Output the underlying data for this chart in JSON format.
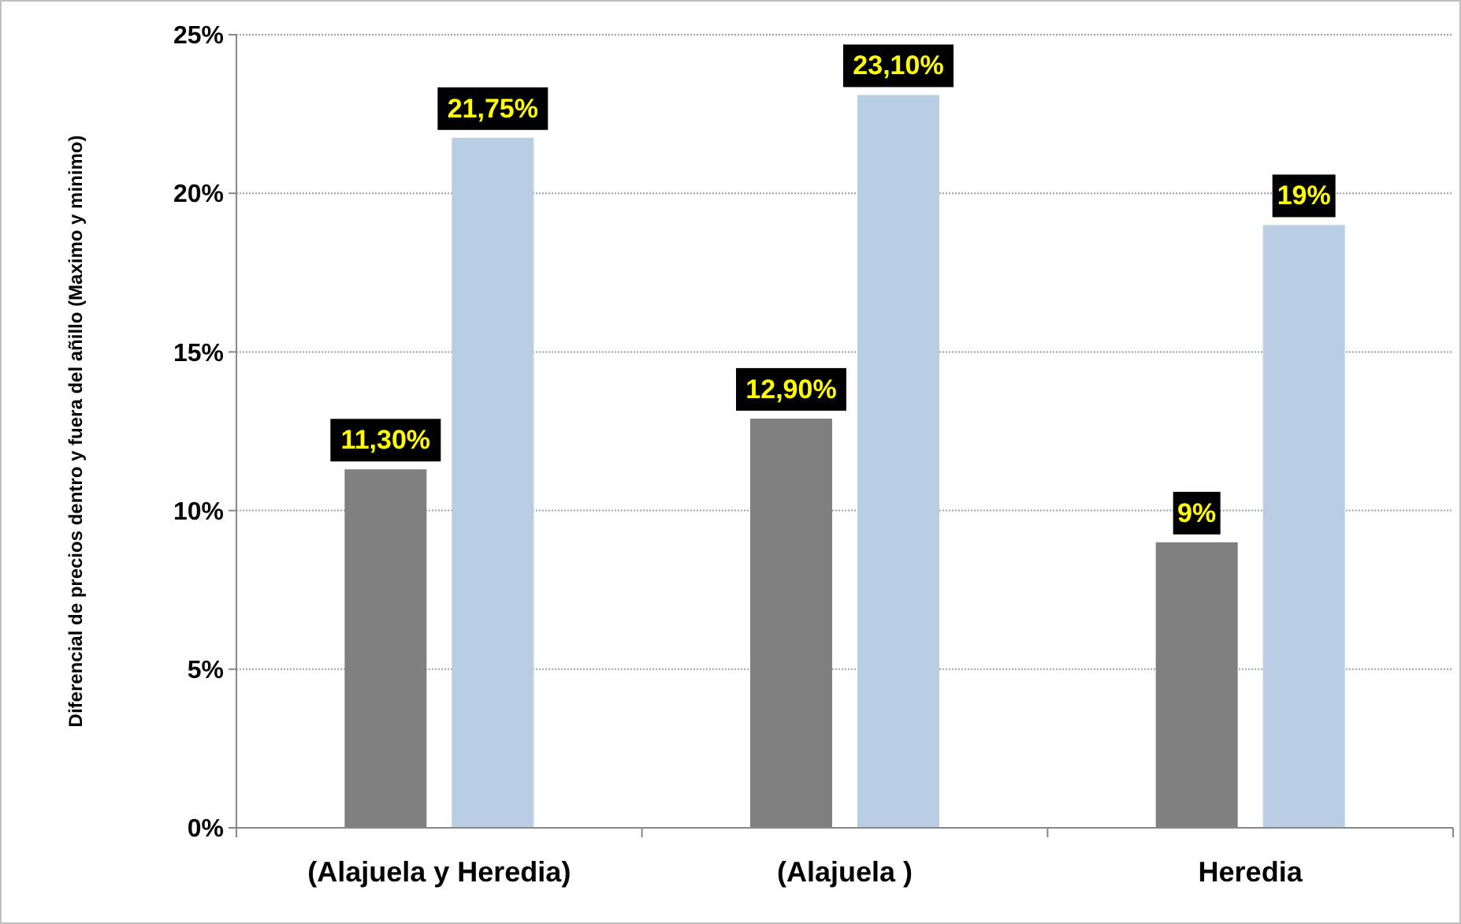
{
  "chart_data": {
    "type": "bar",
    "ylabel": "Diferencial de precios dentro y fuera del añillo (Maximo y minimo)",
    "categories": [
      "(Alajuela y Heredia)",
      "(Alajuela )",
      "Heredia"
    ],
    "series": [
      {
        "color": "#808080",
        "values": [
          11.3,
          12.9,
          9
        ],
        "value_labels": [
          "11,30%",
          "12,90%",
          "9%"
        ]
      },
      {
        "color": "#b9cde5",
        "values": [
          21.75,
          23.1,
          19
        ],
        "value_labels": [
          "21,75%",
          "23,10%",
          "19%"
        ]
      }
    ],
    "ylim": [
      0,
      25
    ],
    "yticks": [
      {
        "value": 0,
        "label": "0%"
      },
      {
        "value": 5,
        "label": "5%"
      },
      {
        "value": 10,
        "label": "10%"
      },
      {
        "value": 15,
        "label": "15%"
      },
      {
        "value": 20,
        "label": "20%"
      },
      {
        "value": 25,
        "label": "25%"
      }
    ],
    "grid": "y"
  }
}
